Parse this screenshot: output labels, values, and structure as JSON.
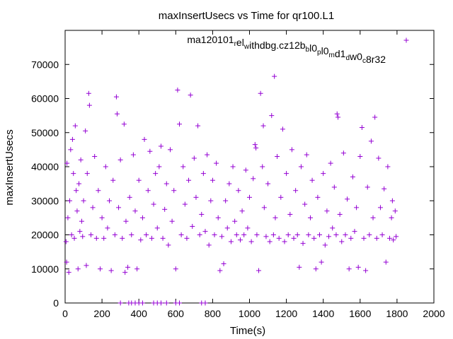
{
  "chart_data": {
    "type": "scatter",
    "title": "maxInsertUsecs vs Time for qr100.L1",
    "xlabel": "Time(s)",
    "ylabel": "maxInsertUsecs",
    "xlim": [
      0,
      2000
    ],
    "ylim": [
      0,
      80000
    ],
    "xticks": [
      0,
      200,
      400,
      600,
      800,
      1000,
      1200,
      1400,
      1600,
      1800,
      2000
    ],
    "yticks": [
      0,
      10000,
      20000,
      30000,
      40000,
      50000,
      60000,
      70000
    ],
    "grid": false,
    "legend_position": "top-right",
    "marker": "+",
    "series": [
      {
        "name": "ma120101_rel_withdbg.cz12b_bl0_pl0_md1_dw0_c8r32",
        "color": "#9400d3",
        "points": [
          [
            5,
            18000
          ],
          [
            8,
            12000
          ],
          [
            10,
            41000
          ],
          [
            15,
            25000
          ],
          [
            20,
            9000
          ],
          [
            25,
            30000
          ],
          [
            30,
            45000
          ],
          [
            35,
            20000
          ],
          [
            40,
            48000
          ],
          [
            45,
            38000
          ],
          [
            50,
            19000
          ],
          [
            55,
            52000
          ],
          [
            60,
            33000
          ],
          [
            65,
            27000
          ],
          [
            70,
            10000
          ],
          [
            75,
            35000
          ],
          [
            80,
            21000
          ],
          [
            85,
            42000
          ],
          [
            90,
            24000
          ],
          [
            95,
            19500
          ],
          [
            100,
            30000
          ],
          [
            110,
            50500
          ],
          [
            115,
            11000
          ],
          [
            120,
            38000
          ],
          [
            128,
            61500
          ],
          [
            132,
            58000
          ],
          [
            140,
            20000
          ],
          [
            150,
            28000
          ],
          [
            160,
            43000
          ],
          [
            170,
            19000
          ],
          [
            180,
            33000
          ],
          [
            190,
            10000
          ],
          [
            200,
            25000
          ],
          [
            210,
            19000
          ],
          [
            220,
            40000
          ],
          [
            230,
            22000
          ],
          [
            240,
            30000
          ],
          [
            250,
            9500
          ],
          [
            260,
            36000
          ],
          [
            270,
            20000
          ],
          [
            278,
            60500
          ],
          [
            282,
            55500
          ],
          [
            290,
            28000
          ],
          [
            300,
            42000
          ],
          [
            310,
            19000
          ],
          [
            320,
            52500
          ],
          [
            325,
            9000
          ],
          [
            330,
            24000
          ],
          [
            340,
            10500
          ],
          [
            350,
            31000
          ],
          [
            360,
            20000
          ],
          [
            370,
            43500
          ],
          [
            380,
            27000
          ],
          [
            390,
            10000
          ],
          [
            400,
            36000
          ],
          [
            410,
            18500
          ],
          [
            420,
            25000
          ],
          [
            430,
            48000
          ],
          [
            440,
            20000
          ],
          [
            450,
            33000
          ],
          [
            460,
            44500
          ],
          [
            470,
            19000
          ],
          [
            480,
            29000
          ],
          [
            490,
            38000
          ],
          [
            500,
            22000
          ],
          [
            510,
            40000
          ],
          [
            520,
            46000
          ],
          [
            530,
            19000
          ],
          [
            540,
            27500
          ],
          [
            550,
            35000
          ],
          [
            560,
            17000
          ],
          [
            570,
            45000
          ],
          [
            580,
            24000
          ],
          [
            590,
            33000
          ],
          [
            600,
            10000
          ],
          [
            610,
            62500
          ],
          [
            620,
            52500
          ],
          [
            630,
            20000
          ],
          [
            640,
            40000
          ],
          [
            650,
            29000
          ],
          [
            660,
            19000
          ],
          [
            670,
            36000
          ],
          [
            680,
            61000
          ],
          [
            690,
            22500
          ],
          [
            700,
            42500
          ],
          [
            710,
            31000
          ],
          [
            720,
            52000
          ],
          [
            730,
            20000
          ],
          [
            740,
            26000
          ],
          [
            750,
            38000
          ],
          [
            760,
            21000
          ],
          [
            770,
            43500
          ],
          [
            780,
            17000
          ],
          [
            790,
            30000
          ],
          [
            800,
            36000
          ],
          [
            810,
            20000
          ],
          [
            820,
            41000
          ],
          [
            830,
            25000
          ],
          [
            840,
            9500
          ],
          [
            850,
            19500
          ],
          [
            860,
            11500
          ],
          [
            870,
            30000
          ],
          [
            880,
            22000
          ],
          [
            890,
            35000
          ],
          [
            900,
            18000
          ],
          [
            910,
            40000
          ],
          [
            920,
            24000
          ],
          [
            930,
            20000
          ],
          [
            940,
            33000
          ],
          [
            950,
            18500
          ],
          [
            960,
            27000
          ],
          [
            970,
            20000
          ],
          [
            980,
            39000
          ],
          [
            990,
            22000
          ],
          [
            1000,
            31000
          ],
          [
            1010,
            18000
          ],
          [
            1020,
            36500
          ],
          [
            1030,
            46500
          ],
          [
            1035,
            45500
          ],
          [
            1040,
            20000
          ],
          [
            1050,
            9500
          ],
          [
            1060,
            61500
          ],
          [
            1070,
            40000
          ],
          [
            1075,
            52000
          ],
          [
            1080,
            28000
          ],
          [
            1090,
            19500
          ],
          [
            1100,
            35000
          ],
          [
            1110,
            18000
          ],
          [
            1120,
            55000
          ],
          [
            1130,
            20000
          ],
          [
            1135,
            66500
          ],
          [
            1140,
            25000
          ],
          [
            1150,
            43000
          ],
          [
            1160,
            19000
          ],
          [
            1170,
            31000
          ],
          [
            1180,
            51000
          ],
          [
            1190,
            18000
          ],
          [
            1200,
            38000
          ],
          [
            1210,
            20000
          ],
          [
            1220,
            26000
          ],
          [
            1230,
            45000
          ],
          [
            1240,
            19000
          ],
          [
            1250,
            33000
          ],
          [
            1260,
            20000
          ],
          [
            1270,
            10500
          ],
          [
            1280,
            40000
          ],
          [
            1290,
            17500
          ],
          [
            1300,
            29000
          ],
          [
            1310,
            43500
          ],
          [
            1320,
            20000
          ],
          [
            1330,
            25000
          ],
          [
            1340,
            36000
          ],
          [
            1350,
            19000
          ],
          [
            1360,
            10000
          ],
          [
            1370,
            31000
          ],
          [
            1380,
            20000
          ],
          [
            1390,
            12000
          ],
          [
            1400,
            38000
          ],
          [
            1410,
            17000
          ],
          [
            1420,
            27000
          ],
          [
            1430,
            19500
          ],
          [
            1440,
            41000
          ],
          [
            1450,
            22000
          ],
          [
            1460,
            34000
          ],
          [
            1470,
            20000
          ],
          [
            1475,
            55500
          ],
          [
            1480,
            54500
          ],
          [
            1490,
            26000
          ],
          [
            1500,
            18000
          ],
          [
            1510,
            44000
          ],
          [
            1520,
            20000
          ],
          [
            1530,
            30500
          ],
          [
            1540,
            10000
          ],
          [
            1550,
            19000
          ],
          [
            1560,
            37000
          ],
          [
            1570,
            21000
          ],
          [
            1580,
            28000
          ],
          [
            1590,
            10500
          ],
          [
            1600,
            43000
          ],
          [
            1610,
            51500
          ],
          [
            1620,
            19000
          ],
          [
            1630,
            9500
          ],
          [
            1640,
            34000
          ],
          [
            1650,
            20000
          ],
          [
            1660,
            47500
          ],
          [
            1670,
            25000
          ],
          [
            1680,
            54500
          ],
          [
            1690,
            19000
          ],
          [
            1700,
            42500
          ],
          [
            1710,
            28000
          ],
          [
            1720,
            20000
          ],
          [
            1730,
            33500
          ],
          [
            1740,
            12000
          ],
          [
            1750,
            40000
          ],
          [
            1760,
            19000
          ],
          [
            1770,
            25000
          ],
          [
            1775,
            30000
          ],
          [
            1780,
            18500
          ],
          [
            1790,
            27000
          ],
          [
            1795,
            19500
          ],
          [
            300,
            0
          ],
          [
            345,
            0
          ],
          [
            360,
            0
          ],
          [
            380,
            0
          ],
          [
            400,
            0
          ],
          [
            420,
            0
          ],
          [
            480,
            0
          ],
          [
            500,
            0
          ],
          [
            520,
            0
          ],
          [
            550,
            0
          ],
          [
            600,
            0
          ],
          [
            620,
            0
          ],
          [
            740,
            0
          ],
          [
            760,
            0
          ]
        ]
      }
    ]
  }
}
